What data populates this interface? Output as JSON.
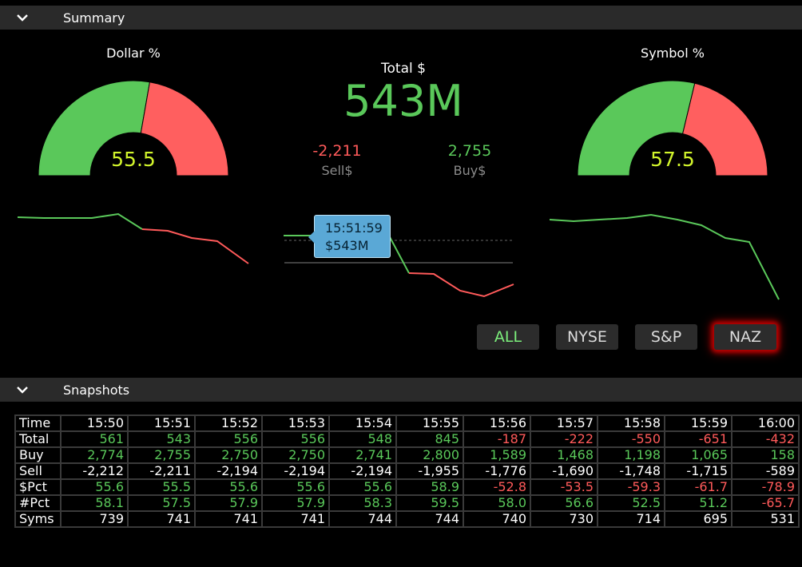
{
  "summary": {
    "section_title": "Summary",
    "dollar_gauge": {
      "label": "Dollar %",
      "value": "55.5",
      "pct": 55.5
    },
    "symbol_gauge": {
      "label": "Symbol %",
      "value": "57.5",
      "pct": 57.5
    },
    "total_label": "Total $",
    "total_value": "543M",
    "sell_value": "-2,211",
    "sell_label": "Sell$",
    "buy_value": "2,755",
    "buy_label": "Buy$",
    "tooltip": {
      "time": "15:51:59",
      "value": "$543M"
    },
    "filters": [
      {
        "label": "ALL",
        "active": true
      },
      {
        "label": "NYSE",
        "active": false
      },
      {
        "label": "S&P",
        "active": false
      },
      {
        "label": "NAZ",
        "active": false
      }
    ],
    "colors": {
      "green": "#5ac85a",
      "red": "#ff5a5a",
      "gauge_value": "#d2f52c",
      "glow": "#c00000"
    }
  },
  "snapshots": {
    "section_title": "Snapshots",
    "header_label": "Time",
    "times": [
      "15:50",
      "15:51",
      "15:52",
      "15:53",
      "15:54",
      "15:55",
      "15:56",
      "15:57",
      "15:58",
      "15:59",
      "16:00"
    ],
    "rows": [
      {
        "label": "Total",
        "values": [
          "561",
          "543",
          "556",
          "556",
          "548",
          "845",
          "-187",
          "-222",
          "-550",
          "-651",
          "-432"
        ],
        "colors": [
          "g",
          "g",
          "g",
          "g",
          "g",
          "g",
          "r",
          "r",
          "r",
          "r",
          "r"
        ]
      },
      {
        "label": "Buy",
        "values": [
          "2,774",
          "2,755",
          "2,750",
          "2,750",
          "2,741",
          "2,800",
          "1,589",
          "1,468",
          "1,198",
          "1,065",
          "158"
        ],
        "colors": [
          "g",
          "g",
          "g",
          "g",
          "g",
          "g",
          "g",
          "g",
          "g",
          "g",
          "g"
        ]
      },
      {
        "label": "Sell",
        "values": [
          "-2,212",
          "-2,211",
          "-2,194",
          "-2,194",
          "-2,194",
          "-1,955",
          "-1,776",
          "-1,690",
          "-1,748",
          "-1,715",
          "-589"
        ],
        "colors": [
          "w",
          "w",
          "w",
          "w",
          "w",
          "w",
          "w",
          "w",
          "w",
          "w",
          "w"
        ]
      },
      {
        "label": "$Pct",
        "values": [
          "55.6",
          "55.5",
          "55.6",
          "55.6",
          "55.6",
          "58.9",
          "-52.8",
          "-53.5",
          "-59.3",
          "-61.7",
          "-78.9"
        ],
        "colors": [
          "g",
          "g",
          "g",
          "g",
          "g",
          "g",
          "r",
          "r",
          "r",
          "r",
          "r"
        ]
      },
      {
        "label": "#Pct",
        "values": [
          "58.1",
          "57.5",
          "57.9",
          "57.9",
          "58.3",
          "59.5",
          "58.0",
          "56.6",
          "52.5",
          "51.2",
          "-65.7"
        ],
        "colors": [
          "g",
          "g",
          "g",
          "g",
          "g",
          "g",
          "g",
          "g",
          "g",
          "g",
          "r"
        ]
      },
      {
        "label": "Syms",
        "values": [
          "739",
          "741",
          "741",
          "741",
          "744",
          "744",
          "740",
          "730",
          "714",
          "695",
          "531"
        ],
        "colors": [
          "w",
          "w",
          "w",
          "w",
          "w",
          "w",
          "w",
          "w",
          "w",
          "w",
          "w"
        ]
      }
    ]
  }
}
